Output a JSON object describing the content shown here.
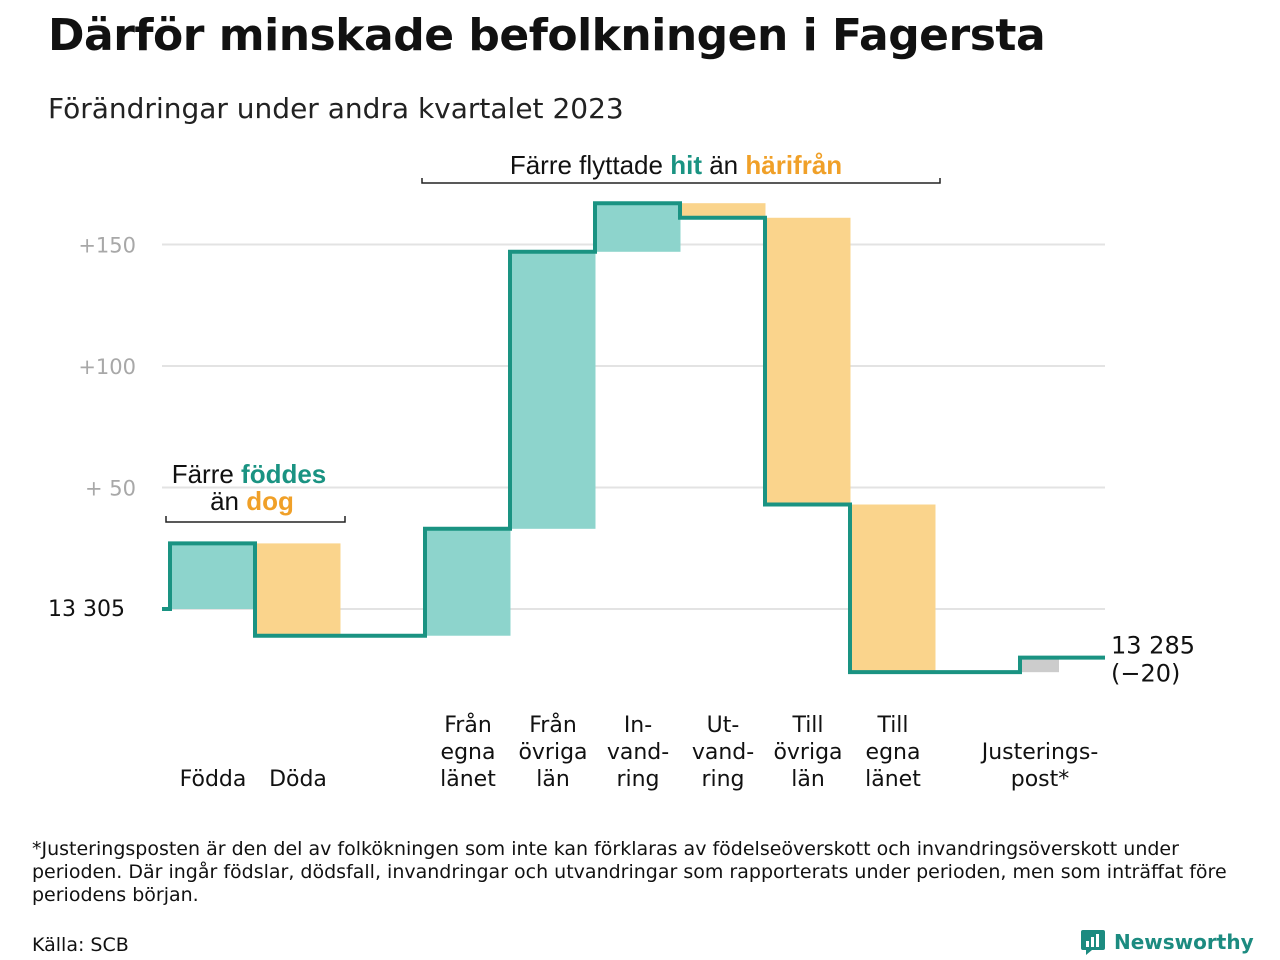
{
  "title": "Därför minskade befolkningen i Fagersta",
  "subtitle": "Förändringar under andra kvartalet 2023",
  "footnote": "*Justeringsposten är den del av folkökningen som inte kan förklaras av födelseöverskott och invandringsöverskott under perioden. Där ingår födslar, dödsfall, invandringar och utvandringar som rapporterats under perioden, men som inträffat före periodens början.",
  "source": "Källa: SCB",
  "brand": "Newsworthy",
  "colors": {
    "increase": "#8dd4cc",
    "decrease": "#fad48c",
    "adjustment": "#cccccc",
    "line": "#1a9382",
    "accent_green": "#1a9382",
    "accent_orange": "#f0a028",
    "grid": "#e3e3e3"
  },
  "chart_data": {
    "type": "waterfall",
    "start_value": 13305,
    "start_label": "13  305",
    "end_label": "13 285",
    "end_change_label": "(−20)",
    "y_ticks": [
      {
        "value": 50,
        "label": "+  50"
      },
      {
        "value": 100,
        "label": "+100"
      },
      {
        "value": 150,
        "label": "+150"
      }
    ],
    "ylim": [
      -30,
      165
    ],
    "steps": [
      {
        "label": [
          "Födda"
        ],
        "value": 27,
        "kind": "increase"
      },
      {
        "label": [
          "Döda"
        ],
        "value": -38,
        "kind": "decrease"
      },
      {
        "label": [
          "Från",
          "egna",
          "länet"
        ],
        "value": 44,
        "kind": "increase"
      },
      {
        "label": [
          "Från",
          "övriga",
          "län"
        ],
        "value": 114,
        "kind": "increase"
      },
      {
        "label": [
          "In-",
          "vand-",
          "ring"
        ],
        "value": 20,
        "kind": "increase"
      },
      {
        "label": [
          "Ut-",
          "vand-",
          "ring"
        ],
        "value": -6,
        "kind": "decrease"
      },
      {
        "label": [
          "Till",
          "övriga",
          "län"
        ],
        "value": -118,
        "kind": "decrease"
      },
      {
        "label": [
          "Till",
          "egna",
          "länet"
        ],
        "value": -69,
        "kind": "decrease"
      },
      {
        "label": [
          "Justerings-",
          "post*"
        ],
        "value": 6,
        "kind": "adjustment"
      }
    ],
    "annotations": [
      {
        "id": "births",
        "parts": [
          {
            "text": "Färre ",
            "style": "normal"
          },
          {
            "text": "föddes",
            "style": "green"
          }
        ],
        "parts2": [
          {
            "text": "än ",
            "style": "normal"
          },
          {
            "text": "dog",
            "style": "orange"
          }
        ]
      },
      {
        "id": "moves",
        "parts": [
          {
            "text": "Färre flyttade ",
            "style": "normal"
          },
          {
            "text": "hit",
            "style": "green"
          },
          {
            "text": " än ",
            "style": "normal"
          },
          {
            "text": "härifrån",
            "style": "orange"
          }
        ]
      }
    ]
  }
}
